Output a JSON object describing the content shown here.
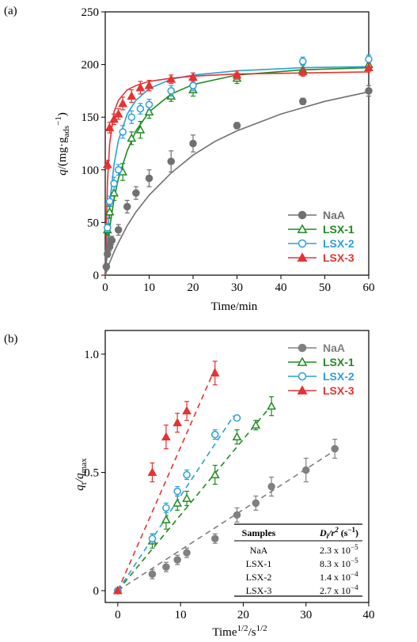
{
  "chart_data": [
    {
      "panel": "(a)",
      "type": "scatter",
      "xlabel": "Time/min",
      "ylabel_main": "q",
      "ylabel_rest": "/(mg·g",
      "ylabel_sub": "ads",
      "ylabel_sup": "−1",
      "ylabel_close": ")",
      "xlim": [
        0,
        60
      ],
      "ylim": [
        0,
        250
      ],
      "xticks": [
        0,
        10,
        20,
        30,
        40,
        50,
        60
      ],
      "yticks": [
        0,
        50,
        100,
        150,
        200,
        250
      ],
      "legend_position": "bottom-right",
      "series": [
        {
          "name": "NaA",
          "marker": "filled-circle",
          "color": "#707070",
          "x": [
            0.25,
            0.5,
            1,
            1.5,
            3,
            5,
            7,
            10,
            15,
            20,
            30,
            45,
            60
          ],
          "y": [
            8,
            20,
            27,
            33,
            43,
            65,
            78,
            92,
            108,
            125,
            142,
            165,
            175
          ],
          "err": [
            3,
            3,
            4,
            4,
            5,
            6,
            6,
            8,
            10,
            8,
            3,
            3,
            5
          ],
          "fit_x": [
            0,
            1,
            2,
            3,
            5,
            7,
            10,
            15,
            20,
            25,
            30,
            40,
            50,
            60
          ],
          "fit_y": [
            0,
            12,
            22,
            31,
            47,
            60,
            76,
            97,
            114,
            127,
            137,
            153,
            165,
            174
          ]
        },
        {
          "name": "LSX-1",
          "marker": "open-triangle",
          "color": "#1f8a1f",
          "x": [
            0.5,
            1,
            2,
            4,
            6,
            8,
            10,
            15,
            20,
            30,
            45,
            60
          ],
          "y": [
            43,
            60,
            78,
            98,
            130,
            138,
            155,
            170,
            176,
            187,
            195,
            200
          ],
          "err": [
            5,
            6,
            7,
            8,
            6,
            8,
            6,
            5,
            6,
            5,
            5,
            5
          ],
          "fit_x": [
            0,
            1,
            2,
            3,
            5,
            7,
            10,
            15,
            20,
            30,
            45,
            60
          ],
          "fit_y": [
            0,
            45,
            72,
            92,
            118,
            137,
            155,
            172,
            181,
            190,
            195,
            197
          ]
        },
        {
          "name": "LSX-2",
          "marker": "open-circle",
          "color": "#2a9fd6",
          "x": [
            0.5,
            1,
            2,
            3,
            4,
            6,
            8,
            10,
            15,
            20,
            45,
            60
          ],
          "y": [
            45,
            70,
            87,
            100,
            136,
            150,
            158,
            162,
            175,
            180,
            203,
            205
          ],
          "err": [
            4,
            5,
            6,
            5,
            6,
            6,
            5,
            5,
            5,
            5,
            4,
            4
          ],
          "fit_x": [
            0,
            1,
            2,
            3,
            5,
            7,
            10,
            15,
            20,
            30,
            45,
            60
          ],
          "fit_y": [
            0,
            68,
            105,
            128,
            153,
            166,
            177,
            186,
            190,
            194,
            197,
            198
          ]
        },
        {
          "name": "LSX-3",
          "marker": "filled-triangle",
          "color": "#e53232",
          "x": [
            0.5,
            1,
            2,
            3,
            4,
            6,
            8,
            10,
            15,
            20,
            30,
            45,
            60
          ],
          "y": [
            105,
            140,
            148,
            153,
            163,
            170,
            178,
            180,
            186,
            188,
            190,
            193,
            197
          ],
          "err": [
            4,
            5,
            5,
            5,
            6,
            6,
            6,
            5,
            4,
            4,
            4,
            4,
            4
          ],
          "fit_x": [
            0,
            0.5,
            1,
            2,
            3,
            5,
            7,
            10,
            15,
            20,
            30,
            45,
            60
          ],
          "fit_y": [
            0,
            88,
            125,
            155,
            166,
            176,
            180,
            184,
            187,
            189,
            191,
            192,
            193
          ]
        }
      ]
    },
    {
      "panel": "(b)",
      "type": "scatter",
      "xlabel_main": "Time",
      "xlabel_sup1": "1/2",
      "xlabel_mid": "/s",
      "xlabel_sup2": "1/2",
      "ylabel_main": "q",
      "ylabel_sub1": "t",
      "ylabel_mid": "/q",
      "ylabel_sub2": "max",
      "xlim": [
        -2,
        40
      ],
      "ylim": [
        -0.05,
        1.1
      ],
      "xticks": [
        0,
        10,
        20,
        30,
        40
      ],
      "yticks": [
        "0",
        "0.5",
        "1.0"
      ],
      "ytick_values": [
        0,
        0.5,
        1.0
      ],
      "legend_position": "top-right",
      "series": [
        {
          "name": "NaA",
          "marker": "filled-circle",
          "color": "#808080",
          "x": [
            0,
            5.5,
            7.7,
            9.5,
            11,
            15.5,
            19,
            22,
            24.5,
            30,
            34.6
          ],
          "y": [
            0,
            0.07,
            0.1,
            0.13,
            0.16,
            0.22,
            0.32,
            0.37,
            0.44,
            0.51,
            0.6
          ],
          "err": [
            0,
            0.02,
            0.02,
            0.02,
            0.02,
            0.02,
            0.03,
            0.03,
            0.04,
            0.05,
            0.04
          ],
          "line_x": [
            0,
            35
          ],
          "line_y": [
            0,
            0.6
          ]
        },
        {
          "name": "LSX-1",
          "marker": "open-triangle",
          "color": "#1f8a1f",
          "x": [
            0,
            5.5,
            7.7,
            9.5,
            11,
            15.5,
            19,
            22,
            24.5
          ],
          "y": [
            0,
            0.21,
            0.3,
            0.37,
            0.39,
            0.49,
            0.65,
            0.7,
            0.78
          ],
          "err": [
            0,
            0.03,
            0.04,
            0.03,
            0.03,
            0.04,
            0.03,
            0.02,
            0.04
          ],
          "line_x": [
            0,
            25
          ],
          "line_y": [
            0,
            0.8
          ]
        },
        {
          "name": "LSX-2",
          "marker": "open-circle",
          "color": "#2a9fd6",
          "x": [
            0,
            5.5,
            7.7,
            9.5,
            11,
            15.5,
            19
          ],
          "y": [
            0,
            0.22,
            0.35,
            0.42,
            0.49,
            0.66,
            0.73
          ],
          "err": [
            0,
            0.02,
            0.02,
            0.02,
            0.02,
            0.02,
            0.01
          ],
          "line_x": [
            0,
            18.5
          ],
          "line_y": [
            0,
            0.74
          ]
        },
        {
          "name": "LSX-3",
          "marker": "filled-triangle",
          "color": "#e53232",
          "x": [
            0,
            5.5,
            7.7,
            9.5,
            11,
            15.5
          ],
          "y": [
            0,
            0.5,
            0.65,
            0.71,
            0.76,
            0.92
          ],
          "err": [
            0,
            0.04,
            0.05,
            0.04,
            0.04,
            0.05
          ],
          "line_x": [
            0,
            15.5
          ],
          "line_y": [
            0,
            0.94
          ]
        }
      ],
      "table": {
        "col1": "Samples",
        "col2_main": "D",
        "col2_sub": "i",
        "col2_mid": "/r",
        "col2_sup": "2",
        "col2_unit": " (s",
        "col2_unit_sup": "−1",
        "col2_close": ")",
        "rows": [
          {
            "sample": "NaA",
            "mantissa": "2.3 x 10",
            "exp": "−5"
          },
          {
            "sample": "LSX-1",
            "mantissa": "8.3 x 10",
            "exp": "−5"
          },
          {
            "sample": "LSX-2",
            "mantissa": "1.4 x 10",
            "exp": "−4"
          },
          {
            "sample": "LSX-3",
            "mantissa": "2.7 x 10",
            "exp": "−4"
          }
        ]
      }
    }
  ]
}
